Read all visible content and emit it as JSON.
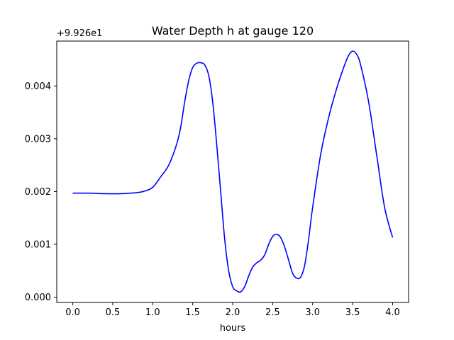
{
  "chart_data": {
    "type": "line",
    "title": "Water Depth h at gauge 120",
    "xlabel": "hours",
    "ylabel": "",
    "y_offset_label": "+9.926e1",
    "xlim": [
      -0.2,
      4.2
    ],
    "ylim": [
      -0.0001,
      0.00485
    ],
    "xticks": [
      0.0,
      0.5,
      1.0,
      1.5,
      2.0,
      2.5,
      3.0,
      3.5,
      4.0
    ],
    "xtick_labels": [
      "0.0",
      "0.5",
      "1.0",
      "1.5",
      "2.0",
      "2.5",
      "3.0",
      "3.5",
      "4.0"
    ],
    "yticks": [
      0.0,
      0.001,
      0.002,
      0.003,
      0.004
    ],
    "ytick_labels": [
      "0.000",
      "0.001",
      "0.002",
      "0.003",
      "0.004"
    ],
    "grid": false,
    "series": [
      {
        "color": "#0000ff",
        "x": [
          0.0,
          0.2,
          0.4,
          0.6,
          0.8,
          0.9,
          1.0,
          1.1,
          1.2,
          1.3,
          1.35,
          1.4,
          1.45,
          1.5,
          1.55,
          1.6,
          1.65,
          1.7,
          1.75,
          1.8,
          1.85,
          1.9,
          1.95,
          2.0,
          2.05,
          2.1,
          2.15,
          2.2,
          2.25,
          2.3,
          2.35,
          2.4,
          2.45,
          2.5,
          2.55,
          2.6,
          2.65,
          2.7,
          2.75,
          2.8,
          2.85,
          2.9,
          2.95,
          3.0,
          3.1,
          3.2,
          3.3,
          3.4,
          3.45,
          3.5,
          3.55,
          3.6,
          3.7,
          3.8,
          3.9,
          4.0
        ],
        "y": [
          0.00197,
          0.00197,
          0.00196,
          0.00196,
          0.00198,
          0.00201,
          0.00208,
          0.00228,
          0.0025,
          0.0029,
          0.00322,
          0.0037,
          0.0041,
          0.00435,
          0.00443,
          0.00444,
          0.0044,
          0.0042,
          0.0037,
          0.0029,
          0.002,
          0.0011,
          0.0005,
          0.0002,
          0.00012,
          0.0001,
          0.0002,
          0.0004,
          0.00057,
          0.00065,
          0.0007,
          0.0008,
          0.001,
          0.00115,
          0.00119,
          0.00113,
          0.00095,
          0.0007,
          0.00045,
          0.00036,
          0.00038,
          0.0006,
          0.0011,
          0.0017,
          0.0027,
          0.0034,
          0.00395,
          0.0044,
          0.00458,
          0.00466,
          0.0046,
          0.0044,
          0.0037,
          0.0027,
          0.0017,
          0.00113
        ]
      }
    ]
  }
}
